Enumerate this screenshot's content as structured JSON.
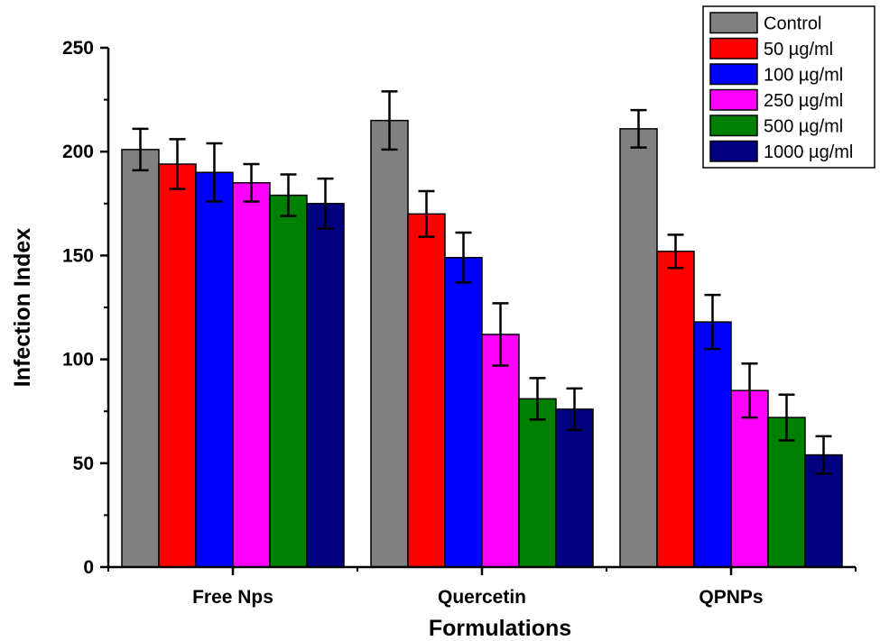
{
  "chart_data": {
    "type": "bar",
    "title": "",
    "xlabel": "Formulations",
    "ylabel": "Infection Index",
    "ylim": [
      0,
      250
    ],
    "yticks": [
      0,
      50,
      100,
      150,
      200,
      250
    ],
    "categories": [
      "Free Nps",
      "Quercetin",
      "QPNPs"
    ],
    "grid": false,
    "legend_position": "top-right",
    "series": [
      {
        "name": "Control",
        "color": "#808080",
        "values": [
          201,
          215,
          211
        ],
        "errors": [
          10,
          14,
          9
        ]
      },
      {
        "name": "50 µg/ml",
        "color": "#ff0000",
        "values": [
          194,
          170,
          152
        ],
        "errors": [
          12,
          11,
          8
        ]
      },
      {
        "name": "100 µg/ml",
        "color": "#0000ff",
        "values": [
          190,
          149,
          118
        ],
        "errors": [
          14,
          12,
          13
        ]
      },
      {
        "name": "250 µg/ml",
        "color": "#ff00ff",
        "values": [
          185,
          112,
          85
        ],
        "errors": [
          9,
          15,
          13
        ]
      },
      {
        "name": "500 µg/ml",
        "color": "#008000",
        "values": [
          179,
          81,
          72
        ],
        "errors": [
          10,
          10,
          11
        ]
      },
      {
        "name": "1000 µg/ml",
        "color": "#000080",
        "values": [
          175,
          76,
          54
        ],
        "errors": [
          12,
          10,
          9
        ]
      }
    ]
  }
}
